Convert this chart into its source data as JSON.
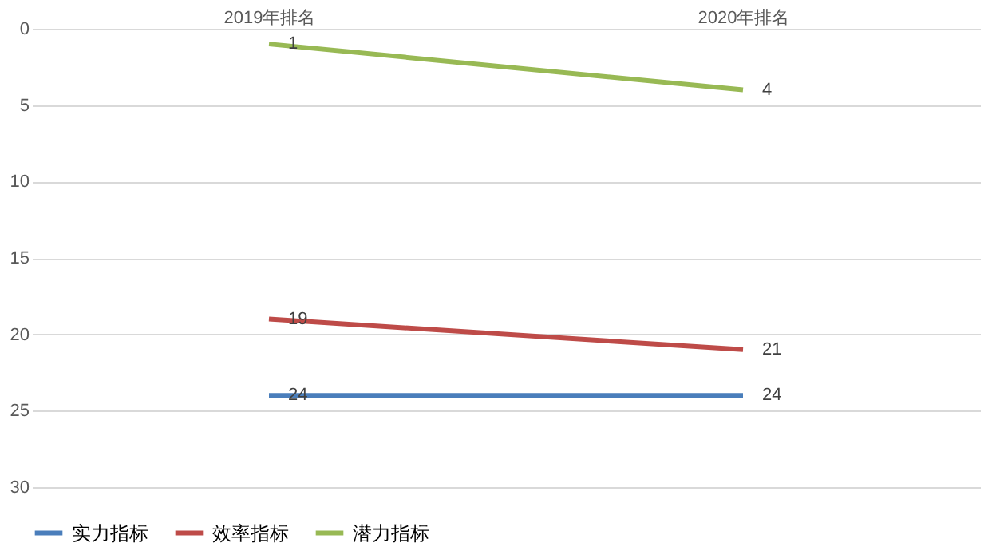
{
  "chart_data": {
    "type": "line",
    "categories": [
      "2019年排名",
      "2020年排名"
    ],
    "series": [
      {
        "name": "实力指标",
        "color": "#4a7ebb",
        "values": [
          24,
          24
        ]
      },
      {
        "name": "效率指标",
        "color": "#be4b48",
        "values": [
          19,
          21
        ]
      },
      {
        "name": "潜力指标",
        "color": "#98b954",
        "values": [
          1,
          4
        ]
      }
    ],
    "ylim": [
      30,
      0
    ],
    "yticks": [
      0,
      5,
      10,
      15,
      20,
      25,
      30
    ],
    "grid": "y",
    "legend": "bottom",
    "data_labels": true,
    "marker": "none",
    "line_style": "solid"
  }
}
